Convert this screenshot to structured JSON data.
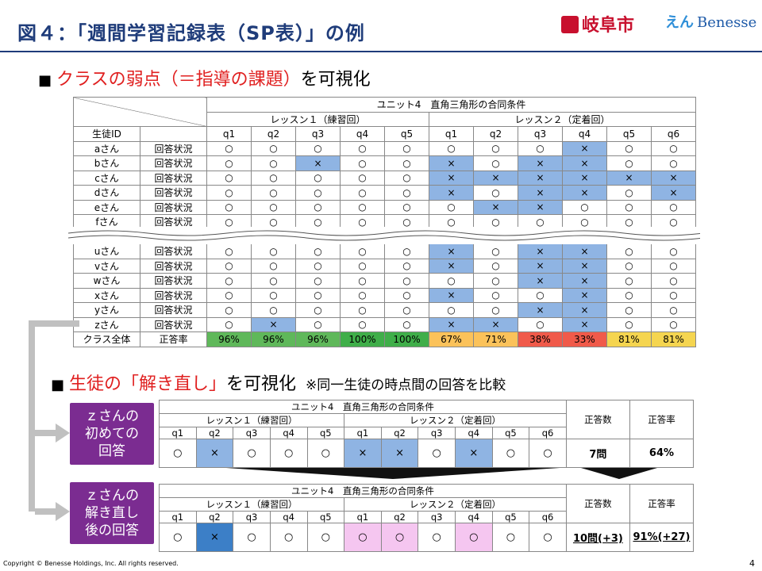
{
  "title": "図４：「週間学習記録表（SP表）」の例",
  "logos": {
    "gifu": "岐阜市",
    "benesse": "Benesse"
  },
  "h1": {
    "square": "■",
    "red": "クラスの弱点（＝指導の課題）",
    "rest": "を可視化"
  },
  "h2": {
    "square": "■",
    "red": "生徒の「解き直し」",
    "rest": "を可視化",
    "note": "※同一生徒の時点間の回答を比較"
  },
  "sp": {
    "unit": "ユニット4　直角三角形の合同条件",
    "lesson1": "レッスン１（練習回）",
    "lesson2": "レッスン２（定着回）",
    "id_header": "生徒ID",
    "qs": [
      "q1",
      "q2",
      "q3",
      "q4",
      "q5",
      "q1",
      "q2",
      "q3",
      "q4",
      "q5",
      "q6"
    ],
    "label": "回答状況",
    "rows_top": [
      {
        "id": "aさん",
        "a": [
          "○",
          "○",
          "○",
          "○",
          "○",
          "○",
          "○",
          "○",
          "×",
          "○",
          "○"
        ],
        "b": [
          0,
          0,
          0,
          0,
          0,
          0,
          0,
          0,
          1,
          0,
          0
        ]
      },
      {
        "id": "bさん",
        "a": [
          "○",
          "○",
          "×",
          "○",
          "○",
          "×",
          "○",
          "×",
          "×",
          "○",
          "○"
        ],
        "b": [
          0,
          0,
          1,
          0,
          0,
          1,
          0,
          1,
          1,
          0,
          0
        ]
      },
      {
        "id": "cさん",
        "a": [
          "○",
          "○",
          "○",
          "○",
          "○",
          "×",
          "×",
          "×",
          "×",
          "×",
          "×"
        ],
        "b": [
          0,
          0,
          0,
          0,
          0,
          1,
          1,
          1,
          1,
          1,
          1
        ]
      },
      {
        "id": "dさん",
        "a": [
          "○",
          "○",
          "○",
          "○",
          "○",
          "×",
          "○",
          "×",
          "×",
          "○",
          "×"
        ],
        "b": [
          0,
          0,
          0,
          0,
          0,
          1,
          0,
          1,
          1,
          0,
          1
        ]
      },
      {
        "id": "eさん",
        "a": [
          "○",
          "○",
          "○",
          "○",
          "○",
          "○",
          "×",
          "×",
          "○",
          "○",
          "○"
        ],
        "b": [
          0,
          0,
          0,
          0,
          0,
          0,
          1,
          1,
          0,
          0,
          0
        ]
      },
      {
        "id": "fさん",
        "a": [
          "○",
          "○",
          "○",
          "○",
          "○",
          "○",
          "○",
          "○",
          "○",
          "○",
          "○"
        ],
        "b": [
          0,
          0,
          0,
          0,
          0,
          0,
          0,
          0,
          0,
          0,
          0
        ]
      }
    ],
    "rows_bottom": [
      {
        "id": "uさん",
        "a": [
          "○",
          "○",
          "○",
          "○",
          "○",
          "×",
          "○",
          "×",
          "×",
          "○",
          "○"
        ],
        "b": [
          0,
          0,
          0,
          0,
          0,
          1,
          0,
          1,
          1,
          0,
          0
        ]
      },
      {
        "id": "vさん",
        "a": [
          "○",
          "○",
          "○",
          "○",
          "○",
          "×",
          "○",
          "×",
          "×",
          "○",
          "○"
        ],
        "b": [
          0,
          0,
          0,
          0,
          0,
          1,
          0,
          1,
          1,
          0,
          0
        ]
      },
      {
        "id": "wさん",
        "a": [
          "○",
          "○",
          "○",
          "○",
          "○",
          "○",
          "○",
          "×",
          "×",
          "○",
          "○"
        ],
        "b": [
          0,
          0,
          0,
          0,
          0,
          0,
          0,
          1,
          1,
          0,
          0
        ]
      },
      {
        "id": "xさん",
        "a": [
          "○",
          "○",
          "○",
          "○",
          "○",
          "×",
          "○",
          "○",
          "×",
          "○",
          "○"
        ],
        "b": [
          0,
          0,
          0,
          0,
          0,
          1,
          0,
          0,
          1,
          0,
          0
        ]
      },
      {
        "id": "yさん",
        "a": [
          "○",
          "○",
          "○",
          "○",
          "○",
          "○",
          "○",
          "×",
          "×",
          "○",
          "○"
        ],
        "b": [
          0,
          0,
          0,
          0,
          0,
          0,
          0,
          1,
          1,
          0,
          0
        ]
      },
      {
        "id": "zさん",
        "a": [
          "○",
          "×",
          "○",
          "○",
          "○",
          "×",
          "×",
          "○",
          "×",
          "○",
          "○"
        ],
        "b": [
          0,
          1,
          0,
          0,
          0,
          1,
          1,
          0,
          1,
          0,
          0
        ]
      }
    ],
    "total_id": "クラス全体",
    "total_label": "正答率",
    "rates": [
      "96%",
      "96%",
      "96%",
      "100%",
      "100%",
      "67%",
      "71%",
      "38%",
      "33%",
      "81%",
      "81%"
    ]
  },
  "z1": {
    "box": [
      "ｚさんの",
      "初めての",
      "回答"
    ],
    "answers": [
      "○",
      "×",
      "○",
      "○",
      "○",
      "×",
      "×",
      "○",
      "×",
      "○",
      "○"
    ],
    "count": "7問",
    "rate": "64%"
  },
  "z2": {
    "box": [
      "ｚさんの",
      "解き直し",
      "後の回答"
    ],
    "answers": [
      "○",
      "×",
      "○",
      "○",
      "○",
      "○",
      "○",
      "○",
      "○",
      "○",
      "○"
    ],
    "count": "10問(+3)",
    "rate": "91%(+27)"
  },
  "z_headers": {
    "count": "正答数",
    "rate": "正答率"
  },
  "colors": {
    "title": "#1f3c7a",
    "red": "#e02020",
    "purple": "#7b2c91",
    "blue": "#8fb4e3",
    "dark_blue": "#3c7fc7",
    "pink": "#f5c6f0"
  },
  "footer": {
    "copyright": "Copyright © Benesse Holdings, Inc. All rights reserved.",
    "page": "4"
  }
}
